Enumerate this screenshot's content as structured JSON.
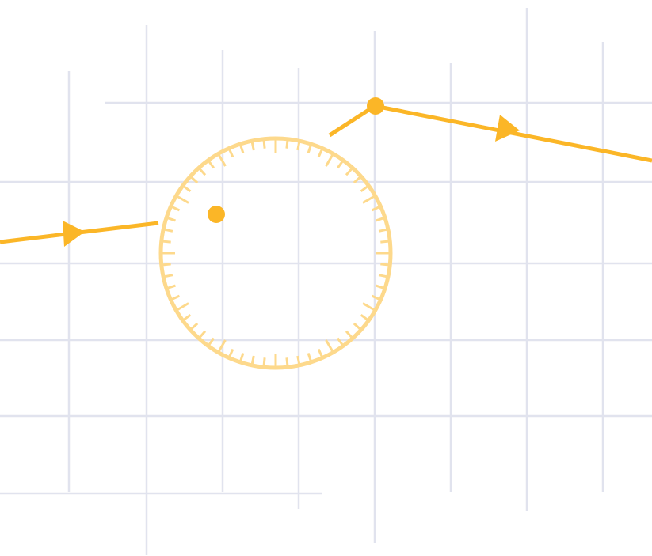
{
  "colors": {
    "background": "#ffffff",
    "grid": "#e1e3ee",
    "route": "#fbb627",
    "dial": "#fdd98c"
  },
  "icons": {
    "direction_marker": "triangle-arrow-icon",
    "waypoint": "dot-icon",
    "dial": "tick-ring-icon"
  },
  "dial": {
    "tick_count": 60
  }
}
